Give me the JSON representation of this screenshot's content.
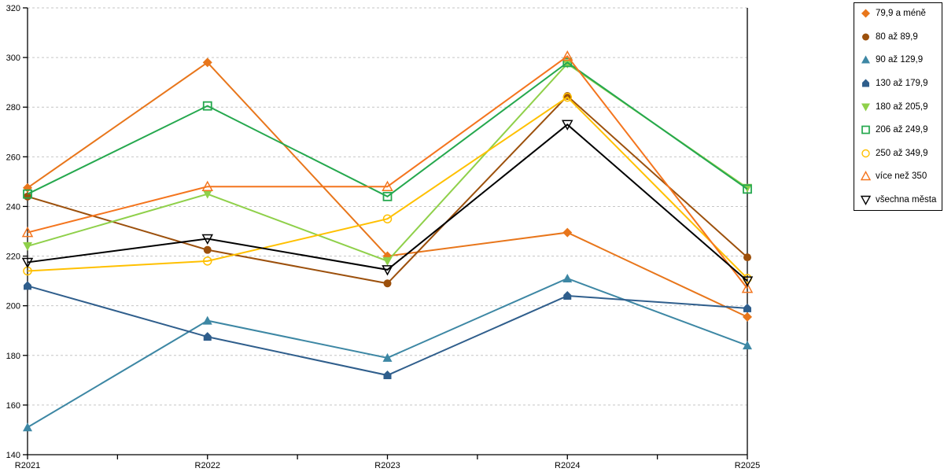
{
  "chart_data": {
    "type": "line",
    "title": "",
    "xlabel": "",
    "ylabel": "",
    "categories": [
      "R2021",
      "R2022",
      "R2023",
      "R2024",
      "R2025"
    ],
    "ylim": [
      140,
      320
    ],
    "ytick_step": 20,
    "grid": "horizontal-dashed",
    "legend_position": "top-right-boxed",
    "series": [
      {
        "name": "79,9 a méně",
        "color": "#e8761b",
        "marker": "diamond",
        "values": [
          247.5,
          298,
          220,
          229.5,
          195.5
        ]
      },
      {
        "name": "80 až 89,9",
        "color": "#9c500c",
        "marker": "circle",
        "values": [
          244,
          222.5,
          209,
          284.5,
          219.5
        ]
      },
      {
        "name": "90 až 129,9",
        "color": "#3d87a4",
        "marker": "triangle",
        "values": [
          151,
          194,
          179,
          211,
          184
        ]
      },
      {
        "name": "130 až 179,9",
        "color": "#2f5e8c",
        "marker": "pentagon",
        "values": [
          208,
          187.5,
          172,
          204,
          199
        ]
      },
      {
        "name": "180 až 205,9",
        "color": "#8fd04a",
        "marker": "triangle-down",
        "values": [
          224,
          245,
          218,
          297.5,
          247.5
        ]
      },
      {
        "name": "206 až 249,9",
        "color": "#25a84e",
        "marker": "square-open",
        "values": [
          245,
          280.5,
          244,
          298,
          247
        ]
      },
      {
        "name": "250 až 349,9",
        "color": "#ffc000",
        "marker": "circle-open",
        "values": [
          214,
          218,
          235,
          284,
          211
        ]
      },
      {
        "name": "více než 350",
        "color": "#f4751e",
        "marker": "triangle-open",
        "values": [
          229.5,
          248,
          248,
          300.5,
          207
        ]
      },
      {
        "name": "všechna města",
        "color": "#000000",
        "marker": "triangle-down-open",
        "values": [
          217.5,
          227,
          214.5,
          273,
          210
        ]
      }
    ]
  },
  "colors": {
    "grid": "#c6c6c6",
    "axis": "#000000",
    "background": "#ffffff"
  }
}
